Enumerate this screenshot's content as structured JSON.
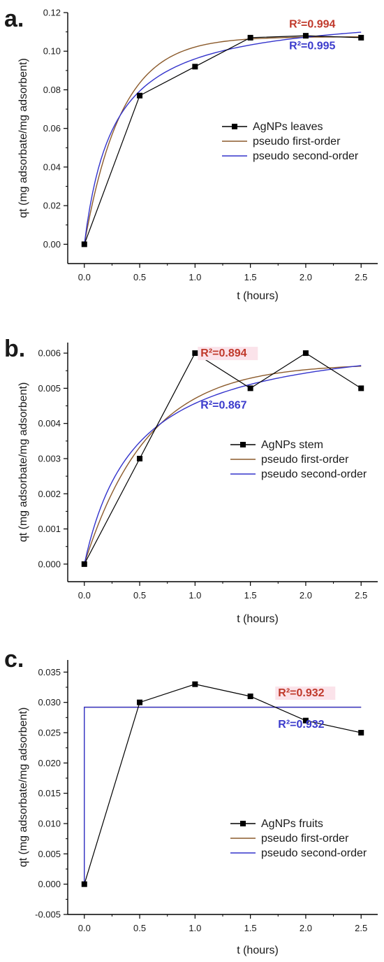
{
  "colors": {
    "data_series": "#000000",
    "first_order": "#8b5a2b",
    "second_order": "#3333cc",
    "first_order_r2": "#c0392b",
    "second_order_r2": "#3b3bcc",
    "r2_highlight": "#fbe3ea"
  },
  "icons": {
    "data_marker": "filled-square-marker"
  },
  "chart_data": [
    {
      "type": "line",
      "panel_label": "a.",
      "xlabel": "t (hours)",
      "ylabel": "qt (mg adsorbate/mg adsorbent)",
      "xlim": [
        -0.15,
        2.65
      ],
      "ylim": [
        -0.01,
        0.12
      ],
      "xticks": [
        0.0,
        0.5,
        1.0,
        1.5,
        2.0,
        2.5
      ],
      "xtick_labels": [
        "0.0",
        "0.5",
        "1.0",
        "1.5",
        "2.0",
        "2.5"
      ],
      "yticks": [
        0.0,
        0.02,
        0.04,
        0.06,
        0.08,
        0.1,
        0.12
      ],
      "ytick_labels": [
        "0.00",
        "0.02",
        "0.04",
        "0.06",
        "0.08",
        "0.10",
        "0.12"
      ],
      "grid": false,
      "legend_position": "right-middle",
      "series": [
        {
          "name": "AgNPs leaves",
          "kind": "data",
          "x": [
            0.0,
            0.5,
            1.0,
            1.5,
            2.0,
            2.5
          ],
          "y": [
            0.0,
            0.077,
            0.092,
            0.107,
            0.108,
            0.107
          ]
        },
        {
          "name": "pseudo first-order",
          "kind": "first_order",
          "qe": 0.1075,
          "k": 3.0
        },
        {
          "name": "pseudo second-order",
          "kind": "second_order",
          "qe": 0.1215,
          "k": 31.0
        }
      ],
      "annotations": [
        {
          "text": "R²=0.994",
          "model": "first_order",
          "x": 1.85,
          "y": 0.1123,
          "highlight": false
        },
        {
          "text": "R²=0.995",
          "model": "second_order",
          "x": 1.85,
          "y": 0.101,
          "highlight": false
        }
      ]
    },
    {
      "type": "line",
      "panel_label": "b.",
      "xlabel": "t (hours)",
      "ylabel": "qt (mg adsorbate/mg adsorbent)",
      "xlim": [
        -0.15,
        2.65
      ],
      "ylim": [
        -0.0005,
        0.0063
      ],
      "xticks": [
        0.0,
        0.5,
        1.0,
        1.5,
        2.0,
        2.5
      ],
      "xtick_labels": [
        "0.0",
        "0.5",
        "1.0",
        "1.5",
        "2.0",
        "2.5"
      ],
      "yticks": [
        0.0,
        0.001,
        0.002,
        0.003,
        0.004,
        0.005,
        0.006
      ],
      "ytick_labels": [
        "0.000",
        "0.001",
        "0.002",
        "0.003",
        "0.004",
        "0.005",
        "0.006"
      ],
      "grid": false,
      "legend_position": "right-middle",
      "series": [
        {
          "name": "AgNPs stem",
          "kind": "data",
          "x": [
            0.0,
            0.5,
            1.0,
            1.5,
            2.0,
            2.5
          ],
          "y": [
            0.0,
            0.003,
            0.006,
            0.005,
            0.006,
            0.005
          ]
        },
        {
          "name": "pseudo first-order",
          "kind": "first_order",
          "qe": 0.0057,
          "k": 1.75
        },
        {
          "name": "pseudo second-order",
          "kind": "second_order",
          "qe": 0.0067,
          "k": 320.0
        }
      ],
      "annotations": [
        {
          "text": "R²=0.894",
          "model": "first_order",
          "x": 1.05,
          "y": 0.0059,
          "highlight": true
        },
        {
          "text": "R²=0.867",
          "model": "second_order",
          "x": 1.05,
          "y": 0.00442,
          "highlight": false
        }
      ]
    },
    {
      "type": "line",
      "panel_label": "c.",
      "xlabel": "t (hours)",
      "ylabel": "qt (mg adsorbate/mg adsorbent)",
      "xlim": [
        -0.15,
        2.65
      ],
      "ylim": [
        -0.005,
        0.037
      ],
      "xticks": [
        0.0,
        0.5,
        1.0,
        1.5,
        2.0,
        2.5
      ],
      "xtick_labels": [
        "0.0",
        "0.5",
        "1.0",
        "1.5",
        "2.0",
        "2.5"
      ],
      "yticks": [
        -0.005,
        0.0,
        0.005,
        0.01,
        0.015,
        0.02,
        0.025,
        0.03,
        0.035
      ],
      "ytick_labels": [
        "-0.005",
        "0.000",
        "0.005",
        "0.010",
        "0.015",
        "0.020",
        "0.025",
        "0.030",
        "0.035"
      ],
      "grid": false,
      "legend_position": "right-bottom",
      "series": [
        {
          "name": "AgNPs fruits",
          "kind": "data",
          "x": [
            0.0,
            0.5,
            1.0,
            1.5,
            2.0,
            2.5
          ],
          "y": [
            0.0,
            0.03,
            0.033,
            0.031,
            0.027,
            0.025
          ]
        },
        {
          "name": "pseudo first-order",
          "kind": "step",
          "x": [
            0.0,
            0.0,
            2.5
          ],
          "y": [
            0.0,
            0.0292,
            0.0292
          ]
        },
        {
          "name": "pseudo second-order",
          "kind": "step",
          "x": [
            0.0,
            0.0,
            2.5
          ],
          "y": [
            0.0,
            0.0292,
            0.0292
          ]
        }
      ],
      "annotations": [
        {
          "text": "R²=0.932",
          "model": "first_order",
          "x": 1.75,
          "y": 0.031,
          "highlight": true
        },
        {
          "text": "R²=0.932",
          "model": "second_order",
          "x": 1.75,
          "y": 0.0258,
          "highlight": false
        }
      ]
    }
  ]
}
